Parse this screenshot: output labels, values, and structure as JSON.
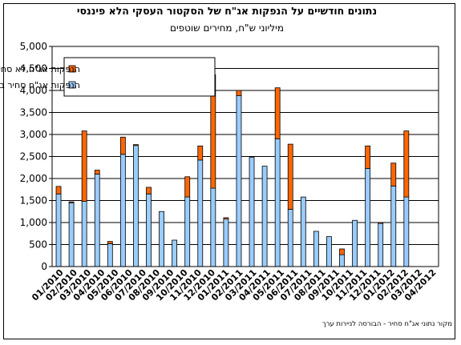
{
  "chart_data": {
    "type": "bar",
    "stacked": true,
    "title": "נתונים חודשיים על הנפקות אג\"ח של הסקטור העסקי הלא פיננסי",
    "subtitle": "מיליוני ש\"ח, מחירים שוטפים",
    "source": "מקור נתוני אג\"ח סחיר - הבורסה לניירות ערך",
    "ylim": [
      0,
      5000
    ],
    "yticks": [
      "0",
      "500",
      "1,000",
      "1,500",
      "2,000",
      "2,500",
      "3,000",
      "3,500",
      "4,000",
      "4,500",
      "5,000"
    ],
    "grid": true,
    "legend_position": "top-left",
    "categories": [
      "01/2010",
      "02/2010",
      "03/2010",
      "04/2010",
      "05/2010",
      "06/2010",
      "07/2010",
      "08/2010",
      "09/2010",
      "10/2010",
      "11/2010",
      "12/2010",
      "01/2011",
      "02/2011",
      "03/2011",
      "04/2011",
      "05/2011",
      "06/2011",
      "07/2011",
      "08/2011",
      "09/2011",
      "10/2011",
      "11/2011",
      "12/2011",
      "01/2012",
      "02/2012",
      "03/2012",
      "04/2012"
    ],
    "bar_slots": [
      "01/2010",
      "02/2010",
      "03/2010",
      "04/2010",
      "05/2010",
      "06/2010",
      "07/2010",
      "08/2010",
      "09/2010",
      "10/2010",
      "11/2010",
      "12/2010",
      "12/2010b",
      "01/2011",
      "02/2011",
      "03/2011",
      "04/2011",
      "05/2011",
      "06/2011",
      "07/2011",
      "08/2011",
      "09/2011",
      "10/2011",
      "11/2011",
      "12/2011",
      "12/2011b",
      "01/2012",
      "02/2012",
      "03/2012",
      "04/2012"
    ],
    "series": [
      {
        "name": "הנפקות אג\"ח סחיר בבורסה בת\"א",
        "color": "#99ccff",
        "values": [
          1650,
          1450,
          1480,
          2100,
          520,
          2550,
          2750,
          1650,
          1250,
          600,
          1580,
          2420,
          1780,
          1080,
          3880,
          2480,
          2280,
          2900,
          1300,
          1580,
          800,
          680,
          270,
          1050,
          2230,
          980,
          1830,
          1580
        ]
      },
      {
        "name": "הנפקות אג\"ח לא סחיר",
        "color": "#ff6600",
        "values": [
          170,
          20,
          1600,
          90,
          50,
          390,
          20,
          150,
          0,
          0,
          460,
          320,
          2580,
          30,
          120,
          0,
          0,
          1160,
          1480,
          0,
          0,
          0,
          130,
          0,
          510,
          20,
          520,
          1500
        ]
      }
    ]
  }
}
